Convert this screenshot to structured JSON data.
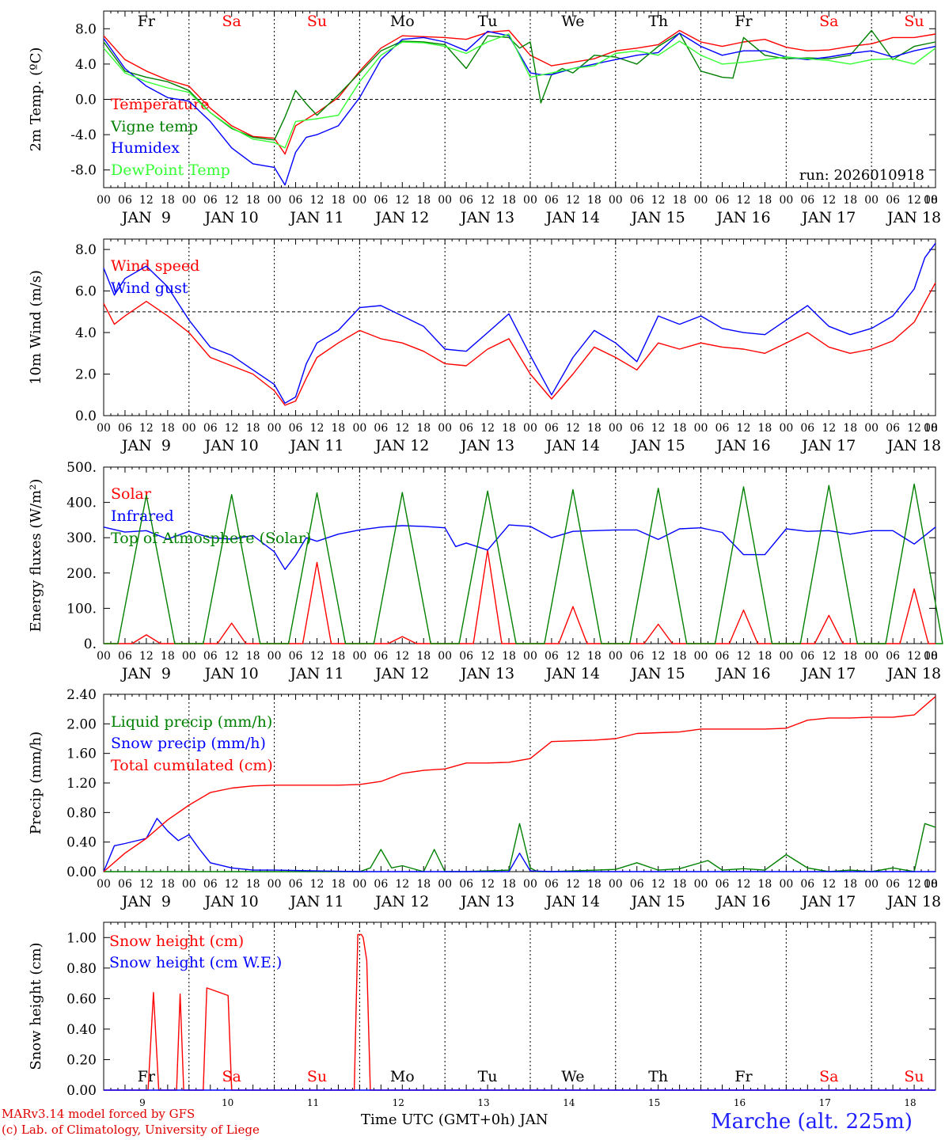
{
  "day_columns": [
    {
      "day": "Fr",
      "weekend": false,
      "date": "9"
    },
    {
      "day": "Sa",
      "weekend": true,
      "date": "10"
    },
    {
      "day": "Su",
      "weekend": true,
      "date": "11"
    },
    {
      "day": "Mo",
      "weekend": false,
      "date": "12"
    },
    {
      "day": "Tu",
      "weekend": false,
      "date": "13"
    },
    {
      "day": "We",
      "weekend": false,
      "date": "14"
    },
    {
      "day": "Th",
      "weekend": false,
      "date": "15"
    },
    {
      "day": "Fr",
      "weekend": false,
      "date": "16"
    },
    {
      "day": "Sa",
      "weekend": true,
      "date": "17"
    },
    {
      "day": "Su",
      "weekend": true,
      "date": "18"
    }
  ],
  "hour_ticks": [
    "00",
    "06",
    "12",
    "18"
  ],
  "date_labels": [
    "JAN  9",
    "JAN 10",
    "JAN 11",
    "JAN 12",
    "JAN 13",
    "JAN 14",
    "JAN 15",
    "JAN 16",
    "JAN 17",
    "JAN 18"
  ],
  "colors": {
    "red": "#ff0000",
    "green": "#008000",
    "blue": "#0000ff",
    "lightgreen": "#33ff33",
    "weekend": "#ff0000",
    "weekday": "#000000"
  },
  "footer": {
    "credit_line1": "MARv3.14 model forced by GFS",
    "credit_line2": "(c) Lab. of Climatology, University of Liege",
    "x_title": "Time UTC (GMT+0h) JAN",
    "station": "Marche (alt. 225m)"
  },
  "chart_data": [
    {
      "id": "temp",
      "type": "line",
      "ylabel": "2m Temp. (ºC)",
      "ylim": [
        -10,
        10
      ],
      "yticks": [
        -8,
        -4,
        0,
        4,
        8
      ],
      "ytick_labels": [
        "-8.0",
        "-4.0",
        "0.0",
        "4.0",
        "8.0"
      ],
      "ref_line": 0,
      "annotation": "run: 2026010918",
      "x_unit": "hours since JAN 9 00 UTC",
      "series": [
        {
          "name": "Temperature",
          "color": "red",
          "x": [
            0,
            6,
            12,
            18,
            24,
            30,
            36,
            42,
            48,
            51,
            54,
            60,
            66,
            72,
            78,
            84,
            90,
            96,
            102,
            108,
            114,
            120,
            126,
            132,
            138,
            144,
            150,
            156,
            162,
            168,
            174,
            180,
            186,
            192,
            198,
            204,
            210,
            216,
            222,
            228,
            234
          ],
          "y": [
            7.2,
            4.5,
            3.2,
            2.2,
            1.5,
            -1,
            -3,
            -4.2,
            -4.4,
            -6.2,
            -3,
            -1.5,
            0.2,
            3.2,
            5.8,
            7.2,
            7.1,
            7.0,
            6.8,
            7.6,
            7.8,
            5.0,
            3.8,
            4.2,
            4.6,
            5.5,
            5.8,
            6.2,
            7.8,
            6.5,
            6.0,
            6.5,
            6.8,
            5.9,
            5.5,
            5.6,
            6.0,
            6.3,
            7.0,
            7.0,
            7.4
          ]
        },
        {
          "name": "Vigne temp",
          "color": "green",
          "x": [
            0,
            6,
            12,
            18,
            24,
            30,
            36,
            42,
            48,
            51,
            54,
            57,
            60,
            66,
            72,
            78,
            84,
            90,
            96,
            102,
            108,
            114,
            117,
            120,
            123,
            126,
            129,
            132,
            138,
            144,
            150,
            156,
            162,
            168,
            174,
            177,
            180,
            186,
            192,
            198,
            204,
            210,
            216,
            222,
            228,
            234
          ],
          "y": [
            6.5,
            3.2,
            2.5,
            2.0,
            1.0,
            -1.5,
            -3.3,
            -4.3,
            -4.6,
            -2,
            1.0,
            -0.5,
            -1.8,
            0.5,
            3.0,
            5.5,
            6.6,
            6.5,
            6.2,
            3.5,
            7.2,
            7.0,
            5.8,
            6.5,
            -0.4,
            2.8,
            3.5,
            3.0,
            5.0,
            4.8,
            4.0,
            6.0,
            7.5,
            3.2,
            2.5,
            2.4,
            7.0,
            5.0,
            4.6,
            4.7,
            4.6,
            5.0,
            7.8,
            4.5,
            6.0,
            6.5
          ]
        },
        {
          "name": "Humidex",
          "color": "blue",
          "x": [
            0,
            6,
            12,
            18,
            24,
            30,
            36,
            42,
            48,
            51,
            54,
            57,
            60,
            66,
            72,
            78,
            84,
            90,
            96,
            102,
            108,
            114,
            120,
            123,
            126,
            132,
            138,
            144,
            150,
            156,
            162,
            168,
            174,
            180,
            186,
            192,
            198,
            204,
            210,
            216,
            222,
            228,
            234
          ],
          "y": [
            6.9,
            3.5,
            1.5,
            0.2,
            -0.2,
            -2.5,
            -5.5,
            -7.3,
            -7.7,
            -9.7,
            -6,
            -4.3,
            -4.0,
            -3.0,
            0.2,
            4.5,
            6.8,
            7.0,
            6.5,
            5.5,
            7.7,
            7.2,
            3.0,
            2.8,
            2.8,
            3.5,
            4.0,
            4.5,
            5.0,
            5.3,
            7.5,
            6.0,
            5.0,
            5.5,
            5.5,
            4.8,
            4.5,
            4.8,
            5.2,
            5.5,
            4.8,
            5.5,
            6.0
          ]
        },
        {
          "name": "DewPoint Temp",
          "color": "lightgreen",
          "x": [
            0,
            6,
            12,
            18,
            24,
            30,
            36,
            42,
            48,
            51,
            54,
            60,
            66,
            72,
            78,
            84,
            90,
            96,
            102,
            108,
            114,
            120,
            126,
            132,
            138,
            144,
            150,
            156,
            162,
            168,
            174,
            180,
            186,
            192,
            198,
            204,
            210,
            216,
            222,
            228,
            234
          ],
          "y": [
            5.8,
            3.0,
            2.0,
            1.3,
            0.8,
            -1.5,
            -3.2,
            -4.5,
            -4.9,
            -5.5,
            -2.5,
            -2.2,
            -1.8,
            2.0,
            5.0,
            6.5,
            6.4,
            6.0,
            5.2,
            6.5,
            7.4,
            2.5,
            3.0,
            3.5,
            3.8,
            5.2,
            5.5,
            5.0,
            6.6,
            5.0,
            4.0,
            4.2,
            4.5,
            4.8,
            4.6,
            4.4,
            4.0,
            4.5,
            4.6,
            4.0,
            5.8
          ]
        }
      ]
    },
    {
      "id": "wind",
      "type": "line",
      "ylabel": "10m Wind (m/s)",
      "ylim": [
        0,
        8.5
      ],
      "yticks": [
        0,
        2,
        4,
        6,
        8
      ],
      "ytick_labels": [
        "0.0",
        "2.0",
        "4.0",
        "6.0",
        "8.0"
      ],
      "ref_line": 5,
      "series": [
        {
          "name": "Wind speed",
          "color": "red",
          "x": [
            0,
            3,
            6,
            12,
            18,
            24,
            30,
            36,
            42,
            48,
            51,
            54,
            57,
            60,
            66,
            72,
            78,
            84,
            90,
            96,
            102,
            108,
            114,
            120,
            126,
            132,
            138,
            144,
            150,
            156,
            162,
            168,
            174,
            180,
            186,
            192,
            198,
            204,
            210,
            216,
            222,
            228,
            234
          ],
          "y": [
            5.4,
            4.4,
            4.8,
            5.5,
            4.8,
            4.0,
            2.8,
            2.4,
            2.0,
            1.2,
            0.5,
            0.7,
            1.8,
            2.8,
            3.5,
            4.1,
            3.7,
            3.5,
            3.1,
            2.5,
            2.4,
            3.2,
            3.7,
            2.0,
            0.8,
            2.0,
            3.3,
            2.8,
            2.2,
            3.5,
            3.2,
            3.5,
            3.3,
            3.2,
            3.0,
            3.5,
            4.0,
            3.3,
            3.0,
            3.2,
            3.6,
            4.5,
            6.4
          ]
        },
        {
          "name": "Wind gust",
          "color": "blue",
          "x": [
            0,
            3,
            6,
            12,
            18,
            24,
            30,
            36,
            42,
            48,
            51,
            54,
            57,
            60,
            66,
            72,
            78,
            84,
            90,
            96,
            102,
            108,
            114,
            120,
            126,
            132,
            138,
            144,
            150,
            156,
            162,
            168,
            174,
            180,
            186,
            192,
            198,
            204,
            210,
            216,
            222,
            228,
            231,
            234
          ],
          "y": [
            7.1,
            5.8,
            6.6,
            7.2,
            6.2,
            4.6,
            3.3,
            2.9,
            2.2,
            1.5,
            0.6,
            0.9,
            2.5,
            3.5,
            4.1,
            5.2,
            5.3,
            4.8,
            4.3,
            3.2,
            3.1,
            4.0,
            4.9,
            2.9,
            1.0,
            2.8,
            4.1,
            3.5,
            2.6,
            4.8,
            4.4,
            4.8,
            4.2,
            4.0,
            3.9,
            4.6,
            5.3,
            4.3,
            3.9,
            4.2,
            4.8,
            6.1,
            7.6,
            8.3
          ]
        }
      ]
    },
    {
      "id": "energy",
      "type": "line",
      "ylabel": "Energy fluxes (W/m²)",
      "ylim": [
        0,
        500
      ],
      "yticks": [
        0,
        100,
        200,
        300,
        400,
        500
      ],
      "ytick_labels": [
        "0.",
        "100.",
        "200.",
        "300.",
        "400.",
        "500."
      ],
      "series": [
        {
          "name": "Solar",
          "color": "red",
          "peaks": [
            25,
            58,
            230,
            20,
            265,
            105,
            55,
            95,
            80,
            155
          ],
          "peak_hour": 12,
          "half_width": 4
        },
        {
          "name": "Infrared",
          "color": "blue",
          "x": [
            0,
            6,
            12,
            18,
            24,
            30,
            36,
            42,
            48,
            51,
            54,
            57,
            60,
            66,
            72,
            78,
            84,
            90,
            96,
            99,
            102,
            108,
            114,
            120,
            126,
            132,
            138,
            144,
            150,
            156,
            162,
            168,
            174,
            180,
            186,
            192,
            198,
            204,
            210,
            216,
            222,
            228,
            234
          ],
          "y": [
            330,
            316,
            320,
            296,
            318,
            300,
            296,
            306,
            260,
            210,
            250,
            300,
            290,
            310,
            322,
            330,
            334,
            332,
            328,
            275,
            285,
            265,
            336,
            332,
            300,
            318,
            320,
            322,
            322,
            295,
            325,
            328,
            315,
            252,
            252,
            325,
            318,
            320,
            310,
            320,
            320,
            282,
            330
          ]
        },
        {
          "name": "Top of Atmosphere (Solar)",
          "color": "green",
          "peaks": [
            420,
            422,
            427,
            428,
            432,
            436,
            440,
            444,
            448,
            452
          ],
          "peak_hour": 12,
          "half_width": 8
        }
      ]
    },
    {
      "id": "precip",
      "type": "line",
      "ylabel": "Precip (mm/h)",
      "ylim": [
        0,
        2.4
      ],
      "yticks": [
        0,
        0.4,
        0.8,
        1.2,
        1.6,
        2.0,
        2.4
      ],
      "ytick_labels": [
        "0.00",
        "0.40",
        "0.80",
        "1.20",
        "1.60",
        "2.00",
        "2.40"
      ],
      "series": [
        {
          "name": "Liquid precip (mm/h)",
          "color": "green",
          "x": [
            0,
            24,
            30,
            36,
            60,
            72,
            75,
            78,
            81,
            84,
            90,
            93,
            96,
            99,
            102,
            114,
            117,
            120,
            122,
            126,
            144,
            150,
            156,
            162,
            170,
            174,
            180,
            186,
            192,
            198,
            204,
            210,
            216,
            222,
            228,
            231,
            234
          ],
          "y": [
            0,
            0,
            0,
            0,
            0,
            0,
            0.05,
            0.3,
            0.05,
            0.08,
            0,
            0.3,
            0,
            0,
            0,
            0.02,
            0.65,
            0.05,
            0,
            0,
            0.03,
            0.12,
            0.02,
            0.04,
            0.15,
            0.02,
            0.04,
            0.02,
            0.23,
            0.05,
            0,
            0.02,
            0,
            0.05,
            0,
            0.65,
            0.6
          ]
        },
        {
          "name": "Snow precip (mm/h)",
          "color": "blue",
          "x": [
            0,
            3,
            6,
            12,
            15,
            18,
            21,
            24,
            27,
            30,
            36,
            42,
            48,
            60,
            72,
            114,
            117,
            120,
            126,
            234
          ],
          "y": [
            0,
            0.35,
            0.38,
            0.45,
            0.72,
            0.55,
            0.42,
            0.5,
            0.3,
            0.12,
            0.05,
            0.02,
            0.02,
            0.01,
            0,
            0,
            0.25,
            0.01,
            0,
            0
          ]
        },
        {
          "name": "Total cumulated (cm)",
          "color": "red",
          "x": [
            0,
            6,
            12,
            18,
            24,
            30,
            36,
            42,
            48,
            54,
            60,
            66,
            72,
            78,
            84,
            90,
            96,
            102,
            108,
            114,
            120,
            126,
            132,
            138,
            144,
            150,
            156,
            162,
            168,
            174,
            180,
            186,
            192,
            198,
            204,
            210,
            216,
            222,
            228,
            234
          ],
          "y": [
            0,
            0.25,
            0.45,
            0.7,
            0.9,
            1.07,
            1.13,
            1.16,
            1.17,
            1.17,
            1.17,
            1.17,
            1.18,
            1.22,
            1.33,
            1.37,
            1.39,
            1.47,
            1.47,
            1.48,
            1.53,
            1.76,
            1.77,
            1.78,
            1.8,
            1.87,
            1.88,
            1.89,
            1.93,
            1.93,
            1.93,
            1.93,
            1.94,
            2.05,
            2.08,
            2.08,
            2.09,
            2.09,
            2.12,
            2.37
          ]
        }
      ]
    },
    {
      "id": "snow",
      "type": "line",
      "ylabel": "Snow height (cm)",
      "ylim": [
        0,
        1.1
      ],
      "yticks": [
        0,
        0.2,
        0.4,
        0.6,
        0.8,
        1.0
      ],
      "ytick_labels": [
        "0.00",
        "0.20",
        "0.40",
        "0.60",
        "0.80",
        "1.00"
      ],
      "series": [
        {
          "name": "Snow height (cm)",
          "color": "red",
          "x": [
            0,
            12.5,
            14,
            15.5,
            20.5,
            21.5,
            22.5,
            28,
            29,
            35,
            36,
            37,
            70.5,
            71.5,
            72.5,
            73,
            74,
            75,
            234
          ],
          "y": [
            0,
            0,
            0.64,
            0,
            0,
            0.63,
            0,
            0,
            0.67,
            0.62,
            0,
            0,
            0,
            1.02,
            1.02,
            1.0,
            0.85,
            0,
            0
          ]
        },
        {
          "name": "Snow height (cm W.E.)",
          "color": "blue",
          "x": [
            0,
            234
          ],
          "y": [
            0,
            0
          ]
        }
      ]
    }
  ]
}
